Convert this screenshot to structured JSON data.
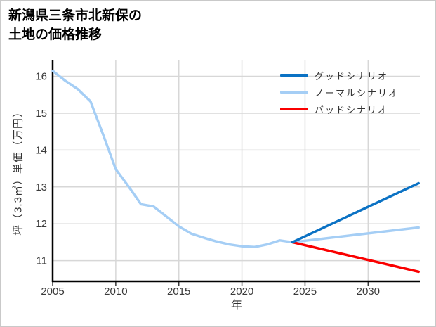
{
  "title": {
    "line1": "新潟県三条市北新保の",
    "line2": "土地の価格推移"
  },
  "chart_data": {
    "type": "line",
    "title": "新潟県三条市北新保の土地の価格推移",
    "xlabel": "年",
    "ylabel": "坪（3.3㎡）単価（万円）",
    "xlim": [
      2005,
      2034.1
    ],
    "ylim": [
      10.44,
      16.43
    ],
    "x_ticks": [
      2005,
      2010,
      2015,
      2020,
      2025,
      2030
    ],
    "y_ticks": [
      11,
      12,
      13,
      14,
      15,
      16
    ],
    "grid": true,
    "legend_position": "top-right",
    "series": [
      {
        "name": "グッドシナリオ",
        "color": "#0b72c4",
        "line_width": 3.5,
        "z": 3,
        "x": [
          2024,
          2034
        ],
        "y": [
          11.5,
          13.1
        ]
      },
      {
        "name": "ノーマルシナリオ",
        "color": "#a5cef5",
        "line_width": 3.5,
        "z": 1,
        "x": [
          2005,
          2006,
          2007,
          2008,
          2009,
          2010,
          2011,
          2012,
          2013,
          2014,
          2015,
          2016,
          2017,
          2018,
          2019,
          2020,
          2021,
          2022,
          2023,
          2024,
          2034
        ],
        "y": [
          16.15,
          15.88,
          15.65,
          15.32,
          14.42,
          13.48,
          13.02,
          12.53,
          12.47,
          12.2,
          11.93,
          11.73,
          11.62,
          11.52,
          11.44,
          11.39,
          11.37,
          11.44,
          11.55,
          11.5,
          11.9
        ]
      },
      {
        "name": "バッドシナリオ",
        "color": "#fa0000",
        "line_width": 3.5,
        "z": 2,
        "x": [
          2024,
          2034
        ],
        "y": [
          11.5,
          10.7
        ]
      }
    ]
  },
  "style": {
    "grid_color": "#d7d7d7",
    "axis_color": "#000000",
    "tick_text_color": "#3a3a3a",
    "border_color": "#c9c9c9",
    "background": "#ffffff"
  }
}
